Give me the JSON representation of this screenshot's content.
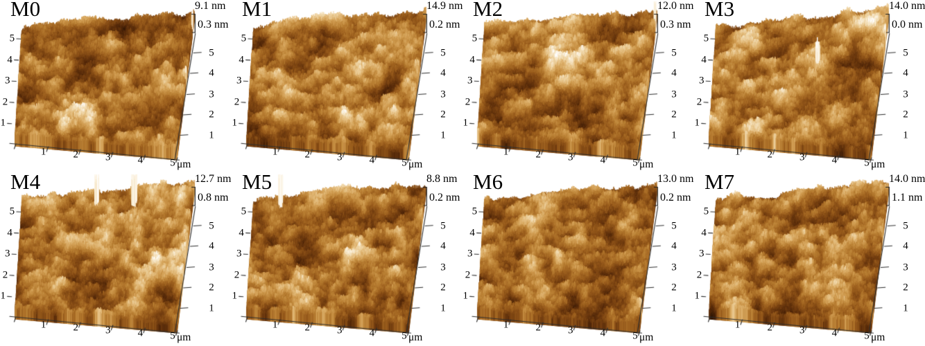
{
  "figure": {
    "panels": [
      {
        "label": "M0",
        "z_max": "9.1 nm",
        "z_min": "0.3 nm"
      },
      {
        "label": "M1",
        "z_max": "14.9 nm",
        "z_min": "0.2 nm"
      },
      {
        "label": "M2",
        "z_max": "12.0 nm",
        "z_min": "0.3 nm"
      },
      {
        "label": "M3",
        "z_max": "14.0 nm",
        "z_min": "0.0 nm"
      },
      {
        "label": "M4",
        "z_max": "12.7 nm",
        "z_min": "0.8 nm"
      },
      {
        "label": "M5",
        "z_max": "8.8 nm",
        "z_min": "0.2 nm"
      },
      {
        "label": "M6",
        "z_max": "13.0 nm",
        "z_min": "0.2 nm"
      },
      {
        "label": "M7",
        "z_max": "14.0 nm",
        "z_min": "1.1 nm"
      }
    ],
    "axes": {
      "x_ticks": [
        "1",
        "2",
        "3",
        "4",
        "5"
      ],
      "x_unit": "μm",
      "y_ticks_left": [
        "5",
        "4",
        "3",
        "2",
        "1"
      ],
      "y_ticks_right": [
        "5",
        "4",
        "3",
        "2",
        "1"
      ]
    },
    "palette": {
      "background": "#ffffff",
      "axis": "#2e2e2e",
      "text": "#000000",
      "surface_stops": [
        [
          "0.00",
          "#170a02"
        ],
        [
          "0.14",
          "#331806"
        ],
        [
          "0.28",
          "#54290a"
        ],
        [
          "0.42",
          "#7a4312"
        ],
        [
          "0.54",
          "#9c5f1e"
        ],
        [
          "0.65",
          "#b97f33"
        ],
        [
          "0.75",
          "#d3a055"
        ],
        [
          "0.84",
          "#e6c184"
        ],
        [
          "0.91",
          "#f2dcb2"
        ],
        [
          "0.96",
          "#faefd8"
        ],
        [
          "1.00",
          "#ffffff"
        ]
      ]
    }
  },
  "chart_data": [
    {
      "type": "heatmap",
      "render": "3d-surface",
      "title": "M0",
      "xlabel": "x (μm)",
      "ylabel": "y (μm)",
      "x_range": [
        0,
        5
      ],
      "y_range": [
        0,
        5
      ],
      "x_ticks": [
        1,
        2,
        3,
        4,
        5
      ],
      "y_ticks": [
        1,
        2,
        3,
        4,
        5
      ],
      "z_unit": "nm",
      "z_max": 9.1,
      "z_min": 0.3
    },
    {
      "type": "heatmap",
      "render": "3d-surface",
      "title": "M1",
      "xlabel": "x (μm)",
      "ylabel": "y (μm)",
      "x_range": [
        0,
        5
      ],
      "y_range": [
        0,
        5
      ],
      "x_ticks": [
        1,
        2,
        3,
        4,
        5
      ],
      "y_ticks": [
        1,
        2,
        3,
        4,
        5
      ],
      "z_unit": "nm",
      "z_max": 14.9,
      "z_min": 0.2
    },
    {
      "type": "heatmap",
      "render": "3d-surface",
      "title": "M2",
      "xlabel": "x (μm)",
      "ylabel": "y (μm)",
      "x_range": [
        0,
        5
      ],
      "y_range": [
        0,
        5
      ],
      "x_ticks": [
        1,
        2,
        3,
        4,
        5
      ],
      "y_ticks": [
        1,
        2,
        3,
        4,
        5
      ],
      "z_unit": "nm",
      "z_max": 12.0,
      "z_min": 0.3
    },
    {
      "type": "heatmap",
      "render": "3d-surface",
      "title": "M3",
      "xlabel": "x (μm)",
      "ylabel": "y (μm)",
      "x_range": [
        0,
        5
      ],
      "y_range": [
        0,
        5
      ],
      "x_ticks": [
        1,
        2,
        3,
        4,
        5
      ],
      "y_ticks": [
        1,
        2,
        3,
        4,
        5
      ],
      "z_unit": "nm",
      "z_max": 14.0,
      "z_min": 0.0
    },
    {
      "type": "heatmap",
      "render": "3d-surface",
      "title": "M4",
      "xlabel": "x (μm)",
      "ylabel": "y (μm)",
      "x_range": [
        0,
        5
      ],
      "y_range": [
        0,
        5
      ],
      "x_ticks": [
        1,
        2,
        3,
        4,
        5
      ],
      "y_ticks": [
        1,
        2,
        3,
        4,
        5
      ],
      "z_unit": "nm",
      "z_max": 12.7,
      "z_min": 0.8
    },
    {
      "type": "heatmap",
      "render": "3d-surface",
      "title": "M5",
      "xlabel": "x (μm)",
      "ylabel": "y (μm)",
      "x_range": [
        0,
        5
      ],
      "y_range": [
        0,
        5
      ],
      "x_ticks": [
        1,
        2,
        3,
        4,
        5
      ],
      "y_ticks": [
        1,
        2,
        3,
        4,
        5
      ],
      "z_unit": "nm",
      "z_max": 8.8,
      "z_min": 0.2
    },
    {
      "type": "heatmap",
      "render": "3d-surface",
      "title": "M6",
      "xlabel": "x (μm)",
      "ylabel": "y (μm)",
      "x_range": [
        0,
        5
      ],
      "y_range": [
        0,
        5
      ],
      "x_ticks": [
        1,
        2,
        3,
        4,
        5
      ],
      "y_ticks": [
        1,
        2,
        3,
        4,
        5
      ],
      "z_unit": "nm",
      "z_max": 13.0,
      "z_min": 0.2
    },
    {
      "type": "heatmap",
      "render": "3d-surface",
      "title": "M7",
      "xlabel": "x (μm)",
      "ylabel": "y (μm)",
      "x_range": [
        0,
        5
      ],
      "y_range": [
        0,
        5
      ],
      "x_ticks": [
        1,
        2,
        3,
        4,
        5
      ],
      "y_ticks": [
        1,
        2,
        3,
        4,
        5
      ],
      "z_unit": "nm",
      "z_max": 14.0,
      "z_min": 1.1
    }
  ]
}
